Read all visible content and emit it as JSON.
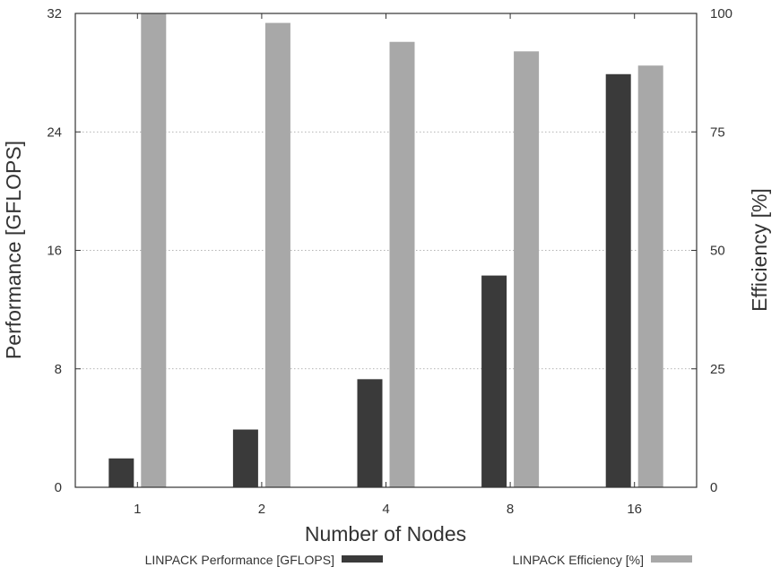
{
  "chart_data": {
    "type": "bar",
    "categories": [
      "1",
      "2",
      "4",
      "8",
      "16"
    ],
    "series": [
      {
        "name": "LINPACK Performance [GFLOPS]",
        "axis": "left",
        "color": "#3a3a3a",
        "values": [
          1.95,
          3.9,
          7.3,
          14.3,
          27.9
        ]
      },
      {
        "name": "LINPACK Efficiency [%]",
        "axis": "right",
        "color": "#a8a8a8",
        "values": [
          100,
          98,
          94,
          92,
          89
        ]
      }
    ],
    "xlabel": "Number of Nodes",
    "ylabel": "Performance [GFLOPS]",
    "y2label": "Efficiency [%]",
    "ylim": [
      0,
      32
    ],
    "y2lim": [
      0,
      100
    ],
    "yticks": [
      "0",
      "8",
      "16",
      "24",
      "32"
    ],
    "y2ticks": [
      "0",
      "25",
      "50",
      "75",
      "100"
    ],
    "grid": true,
    "legend_position": "bottom"
  }
}
